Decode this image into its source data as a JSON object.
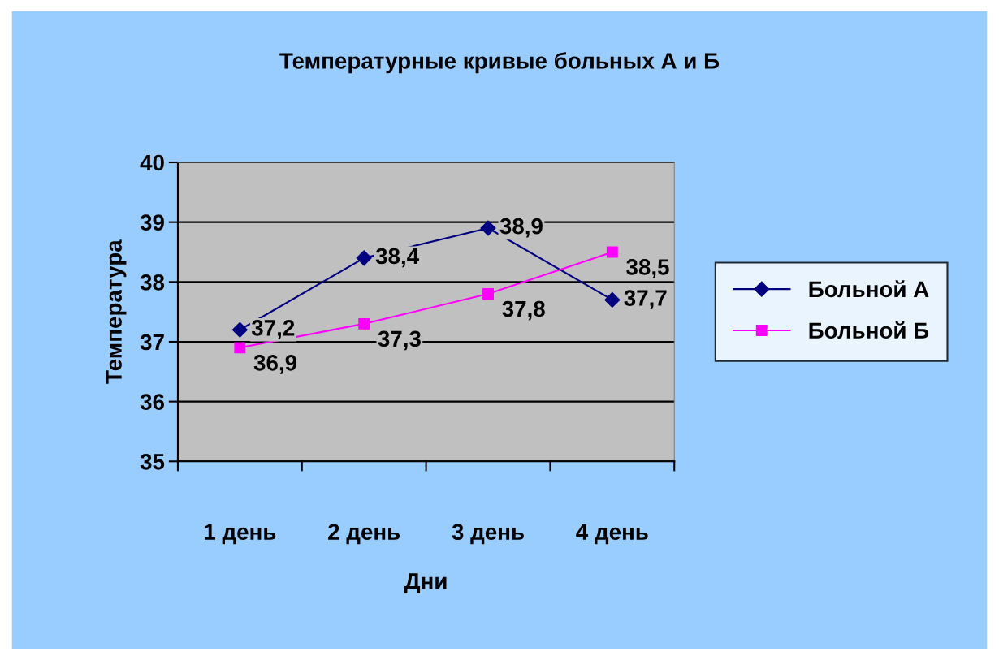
{
  "chart_data": {
    "type": "line",
    "title": "Температурные кривые больных А и Б",
    "xlabel": "Дни",
    "ylabel": "Температура",
    "categories": [
      "1 день",
      "2 день",
      "3 день",
      "4 день"
    ],
    "series": [
      {
        "name": "Больной А",
        "color": "#000080",
        "values": [
          37.2,
          38.4,
          38.9,
          37.7
        ],
        "value_labels": [
          "37,2",
          "38,4",
          "38,9",
          "37,7"
        ],
        "marker": "diamond"
      },
      {
        "name": "Больной Б",
        "color": "#ff00ff",
        "values": [
          36.9,
          37.3,
          37.8,
          38.5
        ],
        "value_labels": [
          "36,9",
          "37,3",
          "37,8",
          "38,5"
        ],
        "marker": "square"
      }
    ],
    "ylim": [
      35,
      40
    ],
    "yticks": [
      35,
      36,
      37,
      38,
      39,
      40
    ],
    "grid": "y",
    "legend": "right",
    "line_style": "solid"
  }
}
